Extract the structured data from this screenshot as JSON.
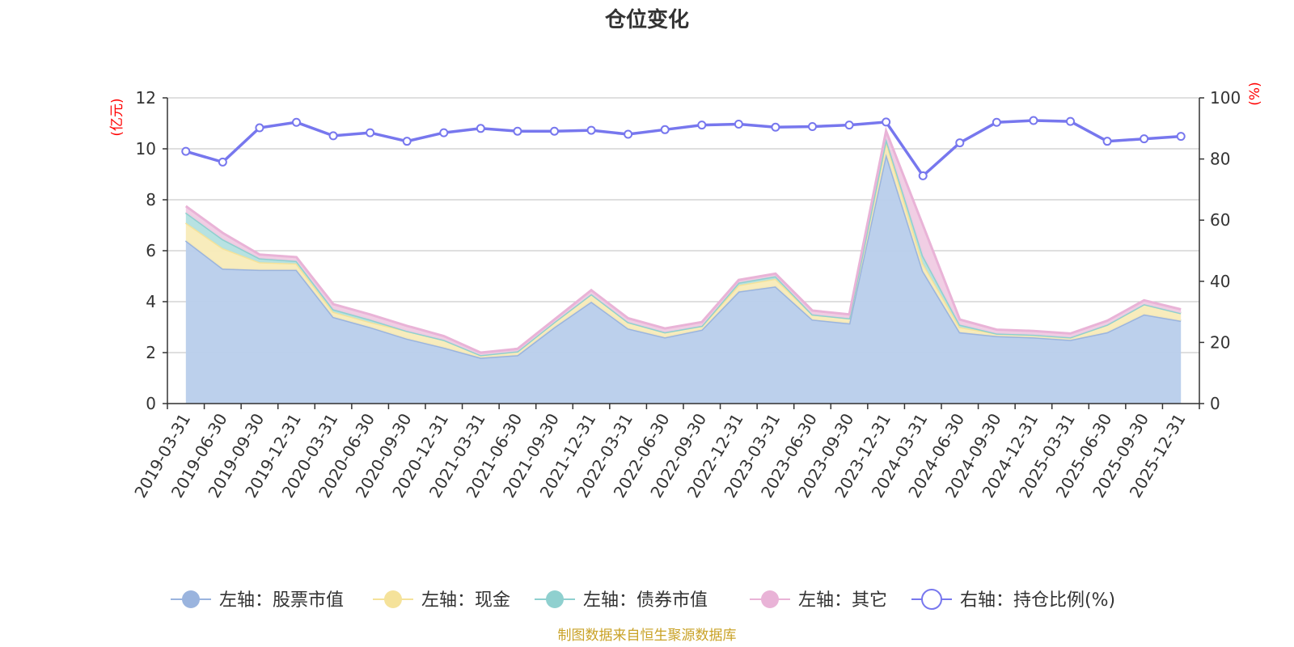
{
  "chart_data": {
    "type": "area",
    "title": "仓位变化",
    "left_axis_unit": "(亿元)",
    "right_axis_unit": "(%)",
    "ylim_left": [
      0,
      12
    ],
    "yticks_left": [
      "0",
      "2",
      "4",
      "6",
      "8",
      "10",
      "12"
    ],
    "ylim_right": [
      0,
      100
    ],
    "yticks_right": [
      "0",
      "20",
      "40",
      "60",
      "80",
      "100"
    ],
    "grid": true,
    "legend_position": "bottom",
    "categories": [
      "2019-03-31",
      "2019-06-30",
      "2019-09-30",
      "2019-12-31",
      "2020-03-31",
      "2020-06-30",
      "2020-09-30",
      "2020-12-31",
      "2021-03-31",
      "2021-06-30",
      "2021-09-30",
      "2021-12-31",
      "2022-03-31",
      "2022-06-30",
      "2022-09-30",
      "2022-12-31",
      "2023-03-31",
      "2023-06-30",
      "2023-09-30",
      "2023-12-31",
      "2024-03-31",
      "2024-06-30",
      "2024-09-30",
      "2024-12-31",
      "2025-03-31",
      "2025-06-30",
      "2025-09-30",
      "2025-12-31"
    ],
    "series": [
      {
        "name": "左轴：股票市值",
        "axis": "left",
        "stack": true,
        "color": "#9ab4de",
        "fill": "#b8cdeb",
        "values": [
          6.4,
          5.3,
          5.25,
          5.25,
          3.4,
          3.0,
          2.55,
          2.2,
          1.8,
          1.9,
          3.0,
          4.0,
          2.95,
          2.6,
          2.9,
          4.4,
          4.6,
          3.3,
          3.15,
          9.8,
          5.2,
          2.8,
          2.65,
          2.6,
          2.5,
          2.8,
          3.5,
          3.25
        ]
      },
      {
        "name": "左轴：现金",
        "axis": "left",
        "stack": true,
        "color": "#f5e29a",
        "fill": "#f8ebb8",
        "values": [
          0.7,
          0.8,
          0.3,
          0.25,
          0.2,
          0.2,
          0.3,
          0.3,
          0.1,
          0.15,
          0.2,
          0.3,
          0.25,
          0.2,
          0.15,
          0.25,
          0.3,
          0.2,
          0.2,
          0.5,
          0.3,
          0.2,
          0.1,
          0.1,
          0.1,
          0.3,
          0.4,
          0.3
        ]
      },
      {
        "name": "左轴：债券市值",
        "axis": "left",
        "stack": true,
        "color": "#8fd0cf",
        "fill": "#b3e0e0",
        "values": [
          0.4,
          0.35,
          0.15,
          0.1,
          0.1,
          0.1,
          0,
          0,
          0,
          0,
          0,
          0,
          0,
          0,
          0,
          0.1,
          0.1,
          0,
          0,
          0.1,
          0.3,
          0.1,
          0,
          0,
          0,
          0,
          0,
          0
        ]
      },
      {
        "name": "左轴：其它",
        "axis": "left",
        "stack": true,
        "color": "#e9b3d7",
        "fill": "#f0cbe3",
        "values": [
          0.25,
          0.25,
          0.15,
          0.15,
          0.2,
          0.2,
          0.2,
          0.15,
          0.1,
          0.1,
          0.1,
          0.15,
          0.15,
          0.15,
          0.15,
          0.1,
          0.1,
          0.15,
          0.15,
          0.3,
          1.2,
          0.2,
          0.15,
          0.15,
          0.15,
          0.15,
          0.15,
          0.15
        ]
      },
      {
        "name": "右轴：持仓比例(%)",
        "axis": "right",
        "stack": false,
        "color": "#7777ee",
        "values": [
          82.5,
          79.0,
          90.2,
          92.0,
          87.6,
          88.6,
          85.8,
          88.6,
          90.0,
          89.1,
          89.1,
          89.4,
          88.1,
          89.6,
          91.1,
          91.4,
          90.4,
          90.6,
          91.1,
          92.1,
          74.5,
          85.3,
          92.0,
          92.6,
          92.3,
          85.8,
          86.6,
          87.4
        ]
      }
    ]
  },
  "source_note": "制图数据来自恒生聚源数据库"
}
